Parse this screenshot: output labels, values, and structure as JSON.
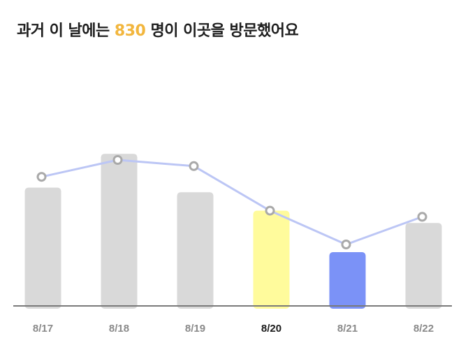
{
  "header": {
    "title_prefix": "과거 이 날에는 ",
    "title_count": "830",
    "title_suffix": " 명이 이곳을 방문했어요"
  },
  "colors": {
    "bar_default": "#d9d9d9",
    "bar_selected": "#fffb9c",
    "bar_today": "#7b92f7",
    "line": "#bcc6f5",
    "point_stroke": "#a9a9a9",
    "baseline": "#7a7a7a",
    "highlight_number": "#f2b63d"
  },
  "chart_data": {
    "type": "bar",
    "categories": [
      "8/17",
      "8/18",
      "8/19",
      "8/20",
      "8/21",
      "8/22"
    ],
    "selected_category": "8/20",
    "highlighted_categories": [
      "8/20",
      "8/21"
    ],
    "ylim": [
      0,
      100
    ],
    "grid": false,
    "series": [
      {
        "type": "bar",
        "values": [
          77,
          99,
          74,
          62,
          35,
          54
        ]
      },
      {
        "type": "line",
        "values": [
          84,
          95,
          91,
          62,
          40,
          58
        ]
      }
    ]
  }
}
